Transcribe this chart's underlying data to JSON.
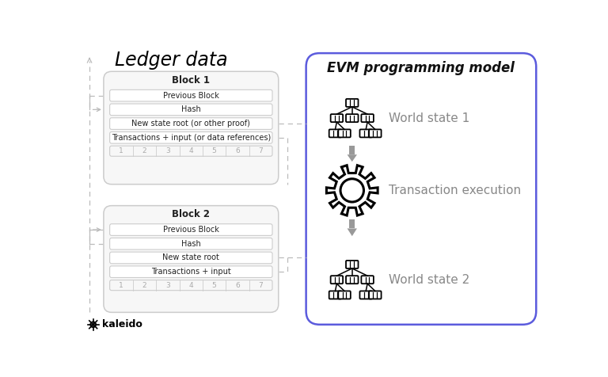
{
  "title_left": "Ledger data",
  "title_right": "EVM programming model",
  "block1_title": "Block 1",
  "block1_rows": [
    "Previous Block",
    "Hash",
    "New state root (or other proof)",
    "Transactions + input (or data references)"
  ],
  "block1_nums": [
    "1",
    "2",
    "3",
    "4",
    "5",
    "6",
    "7"
  ],
  "block2_title": "Block 2",
  "block2_rows": [
    "Previous Block",
    "Hash",
    "New state root",
    "Transactions + input"
  ],
  "block2_nums": [
    "1",
    "2",
    "3",
    "4",
    "5",
    "6",
    "7"
  ],
  "evm_labels": [
    "World state 1",
    "Transaction execution",
    "World state 2"
  ],
  "bg_color": "#ffffff",
  "block_bg": "#f7f7f7",
  "block_border": "#cccccc",
  "row_bg": "#ffffff",
  "row_border": "#cccccc",
  "evm_box_border": "#5B5BDD",
  "arrow_gray": "#999999",
  "dash_color": "#bbbbbb",
  "text_dark": "#222222",
  "text_light": "#aaaaaa",
  "label_gray": "#888888",
  "kaleido_text": "kaleido",
  "evm_title_color": "#111111"
}
